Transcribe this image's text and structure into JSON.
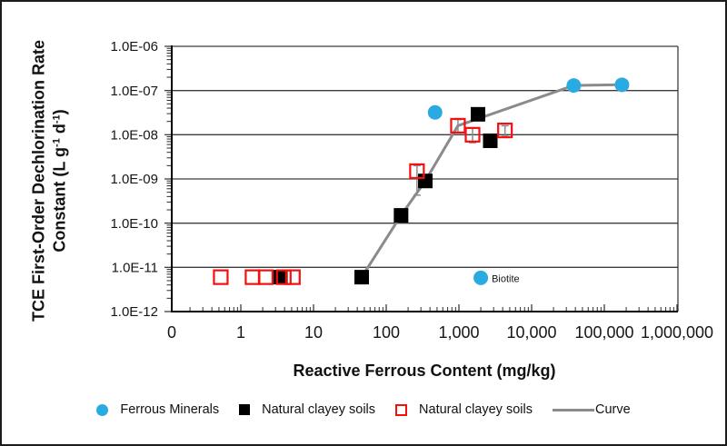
{
  "chart_data": {
    "type": "scatter",
    "title": "",
    "xlabel": "Reactive Ferrous Content (mg/kg)",
    "ylabel": "TCE First-Order Dechlorination Rate Constant (L g⁻¹ d⁻¹)",
    "ylabel_lines": {
      "line1": "TCE First-Order Dechlorination Rate",
      "line2_prefix": "Constant (L g",
      "line2_sup1": "-1",
      "line2_mid": " d",
      "line2_sup2": "-1",
      "line2_suffix": ")"
    },
    "x_scale": "log",
    "y_scale": "log",
    "x_tick_labels": [
      "0",
      "1",
      "10",
      "100",
      "1,000",
      "10,000",
      "100,000",
      "1,000,000"
    ],
    "y_tick_labels": [
      "1.0E-06",
      "1.0E-07",
      "1.0E-08",
      "1.0E-09",
      "1.0E-10",
      "1.0E-11",
      "1.0E-12"
    ],
    "xlim": [
      0.11,
      1000000
    ],
    "ylim": [
      1e-12,
      1e-06
    ],
    "grid": "horizontal-major",
    "legend_position": "bottom",
    "series": [
      {
        "name": "Ferrous Minerals",
        "marker": "filled-circle",
        "color": "#29ABE2",
        "points": [
          {
            "x": 470,
            "y": 3.2e-08
          },
          {
            "x": 38000,
            "y": 1.3e-07
          },
          {
            "x": 175000,
            "y": 1.35e-07
          },
          {
            "x": 2000,
            "y": 5.8e-12,
            "label": "Biotite"
          }
        ]
      },
      {
        "name": "Natural clayey soils",
        "marker": "filled-square",
        "color": "#000000",
        "points": [
          {
            "x": 3.5,
            "y": 6e-12
          },
          {
            "x": 46,
            "y": 6e-12
          },
          {
            "x": 160,
            "y": 1.5e-10
          },
          {
            "x": 345,
            "y": 9e-10
          },
          {
            "x": 1830,
            "y": 2.9e-08
          },
          {
            "x": 2700,
            "y": 7.3e-09
          }
        ]
      },
      {
        "name": "Natural clayey soils",
        "marker": "open-square",
        "color": "#F50F0F",
        "points": [
          {
            "x": 0.53,
            "y": 6e-12
          },
          {
            "x": 1.45,
            "y": 6e-12
          },
          {
            "x": 2.2,
            "y": 6e-12
          },
          {
            "x": 3.9,
            "y": 6e-12
          },
          {
            "x": 5.2,
            "y": 6e-12
          },
          {
            "x": 265,
            "y": 1.5e-09,
            "y_err_low": 4.3e-10,
            "y_err_high": 2e-09
          },
          {
            "x": 970,
            "y": 1.6e-08,
            "y_err_low": 1.1e-08,
            "y_err_high": 2.2e-08
          },
          {
            "x": 1540,
            "y": 1e-08,
            "y_err_low": 6.6e-09,
            "y_err_high": 1.4e-08
          },
          {
            "x": 4300,
            "y": 1.25e-08,
            "y_err_low": 9.2e-09,
            "y_err_high": 1.6e-08
          }
        ]
      },
      {
        "name": "Curve",
        "marker": "line",
        "color": "#8B8B8B",
        "points": [
          {
            "x": 46,
            "y": 6e-12
          },
          {
            "x": 160,
            "y": 1.5e-10
          },
          {
            "x": 345,
            "y": 9e-10
          },
          {
            "x": 970,
            "y": 1.6e-08
          },
          {
            "x": 38000,
            "y": 1.3e-07
          },
          {
            "x": 175000,
            "y": 1.35e-07
          }
        ]
      }
    ],
    "annotations": [
      {
        "label": "Biotite",
        "x": 2000,
        "y": 5.8e-12
      }
    ]
  }
}
